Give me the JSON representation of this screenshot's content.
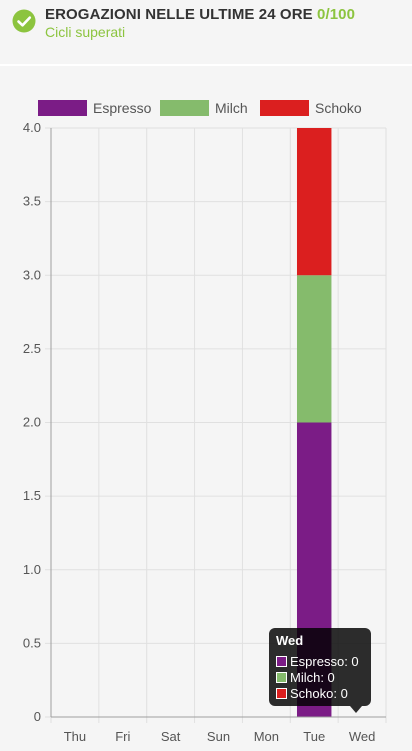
{
  "header": {
    "title": "EROGAZIONI NELLE ULTIME 24 ORE",
    "count": "0/100",
    "subtitle": "Cicli superati"
  },
  "colors": {
    "accent": "#8cc43f",
    "espresso": "#7b1c86",
    "milch": "#85bb6c",
    "schoko": "#db1f1f"
  },
  "chart_data": {
    "type": "bar",
    "stacked": true,
    "categories": [
      "Thu",
      "Fri",
      "Sat",
      "Sun",
      "Mon",
      "Tue",
      "Wed"
    ],
    "series": [
      {
        "name": "Espresso",
        "color": "#7b1c86",
        "values": [
          0,
          0,
          0,
          0,
          0,
          2,
          0
        ]
      },
      {
        "name": "Milch",
        "color": "#85bb6c",
        "values": [
          0,
          0,
          0,
          0,
          0,
          1,
          0
        ]
      },
      {
        "name": "Schoko",
        "color": "#db1f1f",
        "values": [
          0,
          0,
          0,
          0,
          0,
          1,
          0
        ]
      }
    ],
    "ylim": [
      0,
      4
    ],
    "yticks": [
      "0",
      "0.5",
      "1.0",
      "1.5",
      "2.0",
      "2.5",
      "3.0",
      "3.5",
      "4.0"
    ],
    "ytick_values": [
      0,
      0.5,
      1,
      1.5,
      2,
      2.5,
      3,
      3.5,
      4
    ],
    "grid": true,
    "legend": "top"
  },
  "tooltip": {
    "title": "Wed",
    "rows": [
      "Espresso: 0",
      "Milch: 0",
      "Schoko: 0"
    ]
  }
}
